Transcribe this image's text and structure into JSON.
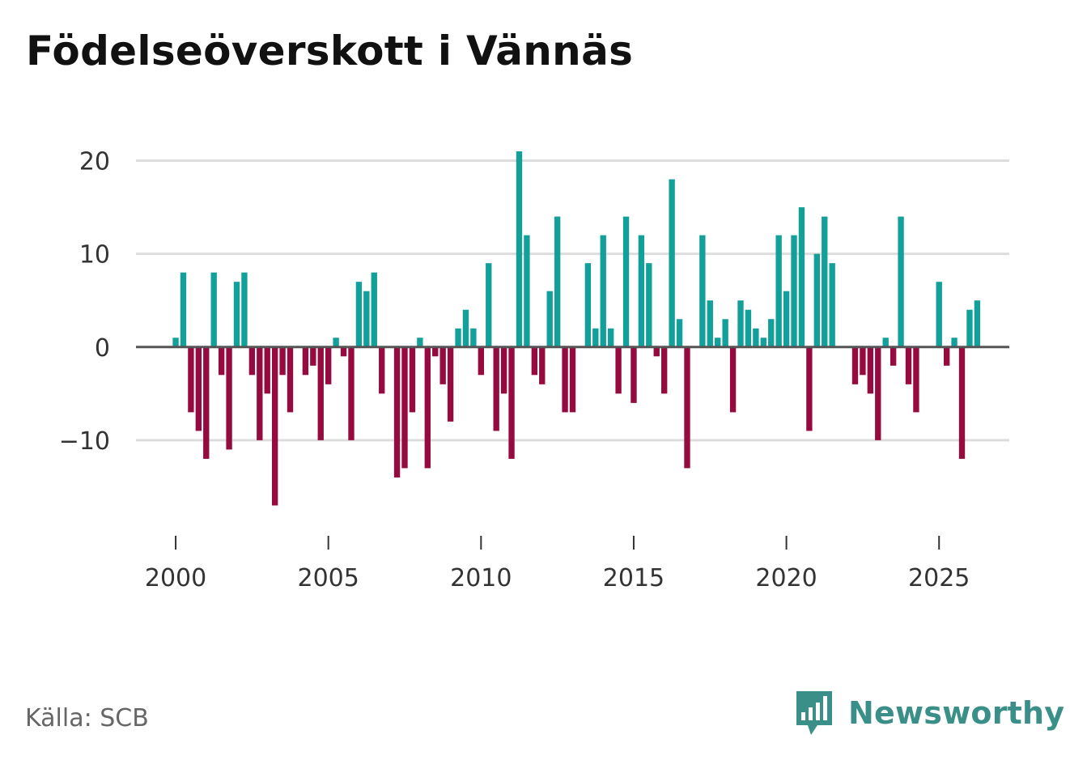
{
  "title": "Födelseöverskott i Vännäs",
  "source": "Källa: SCB",
  "brand": {
    "name": "Newsworthy",
    "icon": "newsworthy-logo-icon",
    "color": "#3a8f88"
  },
  "colors": {
    "positive": "#13a09a",
    "negative": "#950b3f",
    "grid": "#dddddd",
    "zero": "#555555"
  },
  "chart_data": {
    "type": "bar",
    "title": "Födelseöverskott i Vännäs",
    "xlabel": "",
    "ylabel": "",
    "period": "quarterly",
    "x_start": 2000.0,
    "x_step": 0.25,
    "ylim": [
      -18,
      21
    ],
    "xlim": [
      1998.7,
      2027.3
    ],
    "yticks": [
      20,
      10,
      0,
      -10
    ],
    "ytick_labels": [
      "20",
      "10",
      "0",
      "−10"
    ],
    "xticks": [
      2000,
      2005,
      2010,
      2015,
      2020,
      2025
    ],
    "xtick_labels": [
      "2000",
      "2005",
      "2010",
      "2015",
      "2020",
      "2025"
    ],
    "values": [
      1,
      8,
      -7,
      -9,
      -12,
      8,
      -3,
      -11,
      7,
      8,
      -3,
      -10,
      -5,
      -17,
      -3,
      -7,
      0,
      -3,
      -2,
      -10,
      -4,
      1,
      -1,
      -10,
      7,
      6,
      8,
      -5,
      0,
      -14,
      -13,
      -7,
      1,
      -13,
      -1,
      -4,
      -8,
      2,
      4,
      2,
      -3,
      9,
      -9,
      -5,
      -12,
      21,
      12,
      -3,
      -4,
      6,
      14,
      -7,
      -7,
      0,
      9,
      2,
      12,
      2,
      -5,
      14,
      -6,
      12,
      9,
      -1,
      -5,
      18,
      3,
      -13,
      0,
      12,
      5,
      1,
      3,
      -7,
      5,
      4,
      2,
      1,
      3,
      12,
      6,
      12,
      15,
      -9,
      10,
      14,
      9,
      0,
      0,
      -4,
      -3,
      -5,
      -10,
      1,
      -2,
      14,
      -4,
      -7,
      0,
      0,
      7,
      -2,
      1,
      -12,
      4,
      5
    ]
  }
}
